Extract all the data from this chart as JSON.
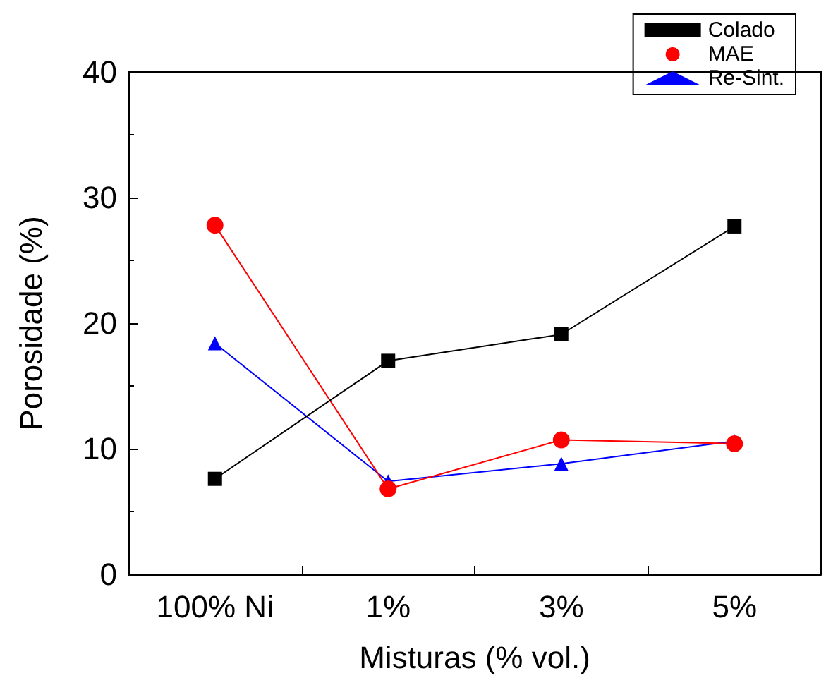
{
  "chart_data": {
    "type": "line",
    "xlabel": "Misturas (% vol.)",
    "ylabel": "Porosidade (%)",
    "categories": [
      "100% Ni",
      "1%",
      "3%",
      "5%"
    ],
    "ylim": [
      0,
      40
    ],
    "yticks": [
      0,
      10,
      20,
      30,
      40
    ],
    "legend": "top right",
    "grid": false,
    "line_style": "solid",
    "series": [
      {
        "name": "Colado",
        "color": "#000000",
        "marker": "square",
        "values": [
          7.6,
          17.0,
          19.1,
          27.7
        ]
      },
      {
        "name": "MAE",
        "color": "#ff0000",
        "marker": "circle",
        "values": [
          27.8,
          6.8,
          10.7,
          10.4
        ]
      },
      {
        "name": "Re-Sint.",
        "color": "#0000ff",
        "marker": "triangle",
        "values": [
          18.4,
          7.4,
          8.8,
          10.6
        ]
      }
    ]
  }
}
